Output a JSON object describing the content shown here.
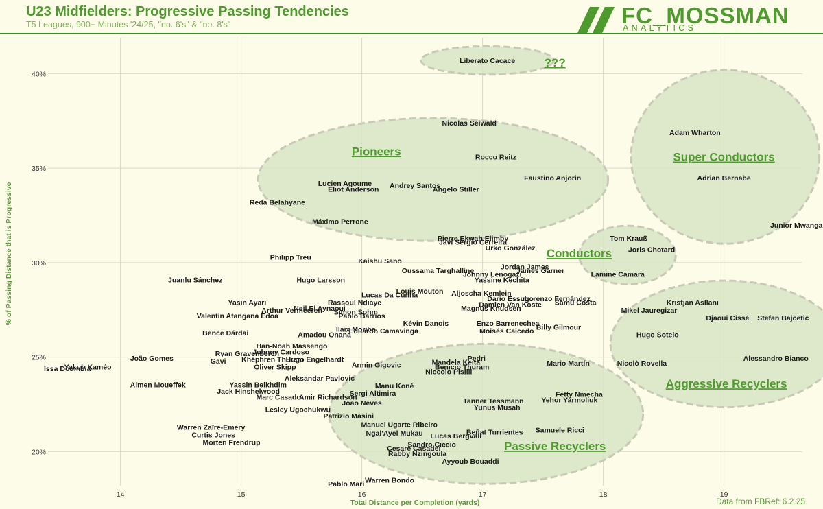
{
  "header": {
    "title": "U23 Midfielders: Progressive Passing Tendencies",
    "subtitle": "T5 Leagues, 900+ Minutes '24/25, \"no. 6's\" & \"no. 8's\""
  },
  "brand": {
    "name": "FC_MOSSMAN",
    "sub": "ANALYTICS",
    "accent": "#4f9a2e",
    "background": "#fdfce9",
    "ellipse_fill": "#d8e4c4"
  },
  "source": "Data from FBRef: 6.2.25",
  "chart_data": {
    "type": "scatter",
    "xlabel": "Total Distance per Completion (yards)",
    "ylabel": "% of Passing Distance that is Progressive",
    "xlim": [
      13.4,
      19.65
    ],
    "ylim": [
      18.2,
      41.9
    ],
    "grid": true,
    "x_ticks": [
      14,
      15,
      16,
      17,
      18,
      19
    ],
    "y_ticks": [
      {
        "v": 20,
        "label": "20%"
      },
      {
        "v": 25,
        "label": "25%"
      },
      {
        "v": 30,
        "label": "30%"
      },
      {
        "v": 35,
        "label": "35%"
      },
      {
        "v": 40,
        "label": "40%"
      }
    ],
    "clusters": [
      {
        "label": "???",
        "cx": 17.04,
        "cy": 40.7,
        "rx": 0.55,
        "ry": 0.75,
        "lx": 17.6,
        "ly": 40.6
      },
      {
        "label": "Pioneers",
        "cx": 16.59,
        "cy": 34.4,
        "rx": 1.45,
        "ry": 3.25,
        "lx": 16.12,
        "ly": 35.9
      },
      {
        "label": "Super Conductors",
        "cx": 19.01,
        "cy": 35.6,
        "rx": 0.78,
        "ry": 4.6,
        "lx": 19.0,
        "ly": 35.6
      },
      {
        "label": "Conductors",
        "cx": 18.2,
        "cy": 30.4,
        "rx": 0.4,
        "ry": 1.55,
        "lx": 17.8,
        "ly": 30.5
      },
      {
        "label": "Aggressive Recyclers",
        "cx": 19.01,
        "cy": 25.7,
        "rx": 0.95,
        "ry": 3.35,
        "lx": 19.02,
        "ly": 23.6
      },
      {
        "label": "Passive Recyclers",
        "cx": 17.03,
        "cy": 22.0,
        "rx": 1.3,
        "ry": 3.7,
        "lx": 17.6,
        "ly": 20.3
      }
    ],
    "points": [
      {
        "name": "Liberato Cacace",
        "x": 17.04,
        "y": 40.7
      },
      {
        "name": "Nicolas Seiwald",
        "x": 16.89,
        "y": 37.4
      },
      {
        "name": "Rocco Reitz",
        "x": 17.11,
        "y": 35.6
      },
      {
        "name": "Faustino Anjorin",
        "x": 17.58,
        "y": 34.5
      },
      {
        "name": "Lucien Agoume",
        "x": 15.86,
        "y": 34.2
      },
      {
        "name": "Andrey Santos",
        "x": 16.44,
        "y": 34.1
      },
      {
        "name": "Eliot Anderson",
        "x": 15.93,
        "y": 33.9
      },
      {
        "name": "Angelo Stiller",
        "x": 16.78,
        "y": 33.9
      },
      {
        "name": "Reda Belahyane",
        "x": 15.3,
        "y": 33.2
      },
      {
        "name": "Máximo Perrone",
        "x": 15.82,
        "y": 32.2
      },
      {
        "name": "Pierre Ekwah Elimby",
        "x": 16.92,
        "y": 31.3
      },
      {
        "name": "Javi Sergio Cerreira",
        "x": 16.92,
        "y": 31.1
      },
      {
        "name": "Urko González",
        "x": 17.23,
        "y": 30.8
      },
      {
        "name": "Philipp Treu",
        "x": 15.41,
        "y": 30.3
      },
      {
        "name": "Kaishu Sano",
        "x": 16.15,
        "y": 30.1
      },
      {
        "name": "Jordan James",
        "x": 17.35,
        "y": 29.8
      },
      {
        "name": "Oussama Targhalline",
        "x": 16.63,
        "y": 29.6
      },
      {
        "name": "Johnny Lenogazi",
        "x": 17.08,
        "y": 29.4
      },
      {
        "name": "James Garner",
        "x": 17.48,
        "y": 29.6
      },
      {
        "name": "Yassine Kechita",
        "x": 17.16,
        "y": 29.1
      },
      {
        "name": "Juanlu Sánchez",
        "x": 14.62,
        "y": 29.1
      },
      {
        "name": "Hugo Larsson",
        "x": 15.66,
        "y": 29.1
      },
      {
        "name": "Louis Mouton",
        "x": 16.48,
        "y": 28.5
      },
      {
        "name": "Lucas Da Cunha",
        "x": 16.23,
        "y": 28.3
      },
      {
        "name": "Aljoscha Kemlein",
        "x": 16.99,
        "y": 28.4
      },
      {
        "name": "Dario Essugo",
        "x": 17.23,
        "y": 28.1
      },
      {
        "name": "Lorenzo Fernández",
        "x": 17.62,
        "y": 28.1
      },
      {
        "name": "Damien Van Koste",
        "x": 17.23,
        "y": 27.8
      },
      {
        "name": "Samu Costa",
        "x": 17.77,
        "y": 27.9
      },
      {
        "name": "Magnus Knudsen",
        "x": 17.07,
        "y": 27.6
      },
      {
        "name": "Yasin Ayari",
        "x": 15.05,
        "y": 27.9
      },
      {
        "name": "Rassoul Ndiaye",
        "x": 15.94,
        "y": 27.9
      },
      {
        "name": "Neil El Aynaoui",
        "x": 15.65,
        "y": 27.6
      },
      {
        "name": "Arthur Vermeeren",
        "x": 15.42,
        "y": 27.5
      },
      {
        "name": "Simon Sohm",
        "x": 15.95,
        "y": 27.4
      },
      {
        "name": "Pablo Barrios",
        "x": 16.0,
        "y": 27.2
      },
      {
        "name": "Valentin Atangana Edoa",
        "x": 14.97,
        "y": 27.2
      },
      {
        "name": "Kévin Danois",
        "x": 16.53,
        "y": 26.8
      },
      {
        "name": "Enzo Barrenechea",
        "x": 17.21,
        "y": 26.8
      },
      {
        "name": "Billy Gilmour",
        "x": 17.63,
        "y": 26.6
      },
      {
        "name": "Moisés Caicedo",
        "x": 17.2,
        "y": 26.4
      },
      {
        "name": "Ilaix Moriba",
        "x": 15.95,
        "y": 26.5
      },
      {
        "name": "Eduardo Camavinga",
        "x": 16.18,
        "y": 26.4
      },
      {
        "name": "Bence Dárdai",
        "x": 14.87,
        "y": 26.3
      },
      {
        "name": "Amadou Onana",
        "x": 15.69,
        "y": 26.2
      },
      {
        "name": "Han-Noah Massengo",
        "x": 15.42,
        "y": 25.6
      },
      {
        "name": "Johnny Cardoso",
        "x": 15.33,
        "y": 25.3
      },
      {
        "name": "Ryan Gravenberch",
        "x": 15.05,
        "y": 25.2
      },
      {
        "name": "Khéphren Thuram",
        "x": 15.26,
        "y": 24.9
      },
      {
        "name": "Hugo Engelhardt",
        "x": 15.61,
        "y": 24.9
      },
      {
        "name": "Gavi",
        "x": 14.81,
        "y": 24.8
      },
      {
        "name": "Oliver Skipp",
        "x": 15.28,
        "y": 24.5
      },
      {
        "name": "João Gomes",
        "x": 14.26,
        "y": 24.95
      },
      {
        "name": "Issa Doumbia",
        "x": 13.56,
        "y": 24.4
      },
      {
        "name": "Yakub Kaméo",
        "x": 13.73,
        "y": 24.5
      },
      {
        "name": "Armin Gigovic",
        "x": 16.12,
        "y": 24.6
      },
      {
        "name": "Pedri",
        "x": 16.95,
        "y": 24.95
      },
      {
        "name": "Mandela Keita",
        "x": 16.78,
        "y": 24.75
      },
      {
        "name": "Benicio Thuram",
        "x": 16.83,
        "y": 24.5
      },
      {
        "name": "Niccolo Pisilli",
        "x": 16.72,
        "y": 24.25
      },
      {
        "name": "Mario Martín",
        "x": 17.71,
        "y": 24.7
      },
      {
        "name": "Aleksandar Pavlovic",
        "x": 15.65,
        "y": 23.9
      },
      {
        "name": "Aimen Moueffek",
        "x": 14.31,
        "y": 23.55
      },
      {
        "name": "Yassin Belkhdim",
        "x": 15.14,
        "y": 23.55
      },
      {
        "name": "Manu Koné",
        "x": 16.27,
        "y": 23.5
      },
      {
        "name": "Jack Hinshelwood",
        "x": 15.06,
        "y": 23.2
      },
      {
        "name": "Sergi Altimira",
        "x": 16.09,
        "y": 23.1
      },
      {
        "name": "Marc Casado",
        "x": 15.31,
        "y": 22.9
      },
      {
        "name": "Amir Richardson",
        "x": 15.72,
        "y": 22.9
      },
      {
        "name": "Joao Neves",
        "x": 16.0,
        "y": 22.6
      },
      {
        "name": "Tanner Tessmann",
        "x": 17.09,
        "y": 22.7
      },
      {
        "name": "Fetty Nmecha",
        "x": 17.8,
        "y": 23.05
      },
      {
        "name": "Yehor Yarmoliuk",
        "x": 17.72,
        "y": 22.75
      },
      {
        "name": "Yunus Musah",
        "x": 17.12,
        "y": 22.35
      },
      {
        "name": "Lesley Ugochukwu",
        "x": 15.47,
        "y": 22.25
      },
      {
        "name": "Patrizio Masini",
        "x": 15.89,
        "y": 21.9
      },
      {
        "name": "Manuel Ugarte Ribeiro",
        "x": 16.31,
        "y": 21.45
      },
      {
        "name": "Warren Zaïre-Emery",
        "x": 14.75,
        "y": 21.3
      },
      {
        "name": "Ngal'Ayel Mukau",
        "x": 16.27,
        "y": 21.0
      },
      {
        "name": "Beñat Turrientes",
        "x": 17.1,
        "y": 21.05
      },
      {
        "name": "Samuele Ricci",
        "x": 17.64,
        "y": 21.15
      },
      {
        "name": "Curtis Jones",
        "x": 14.77,
        "y": 20.9
      },
      {
        "name": "Lucas Bergvall",
        "x": 16.78,
        "y": 20.85
      },
      {
        "name": "Morten Frendrup",
        "x": 14.92,
        "y": 20.5
      },
      {
        "name": "Sandro Ciccio",
        "x": 16.58,
        "y": 20.4
      },
      {
        "name": "Cesare Casadei",
        "x": 16.43,
        "y": 20.2
      },
      {
        "name": "Rabby Nzingoula",
        "x": 16.46,
        "y": 19.9
      },
      {
        "name": "Ayyoub Bouaddi",
        "x": 16.9,
        "y": 19.5
      },
      {
        "name": "Warren Bondo",
        "x": 16.23,
        "y": 18.5
      },
      {
        "name": "Pablo Mari",
        "x": 15.87,
        "y": 18.3
      },
      {
        "name": "Tom Krauß",
        "x": 18.21,
        "y": 31.3
      },
      {
        "name": "Joris Chotard",
        "x": 18.4,
        "y": 30.7
      },
      {
        "name": "Lamine Camara",
        "x": 18.12,
        "y": 29.4
      },
      {
        "name": "Adam Wharton",
        "x": 18.76,
        "y": 36.9
      },
      {
        "name": "Adrian Bernabe",
        "x": 19.0,
        "y": 34.5
      },
      {
        "name": "Junior Mwanga",
        "x": 19.6,
        "y": 32.0
      },
      {
        "name": "Kristjan Asllani",
        "x": 18.74,
        "y": 27.9
      },
      {
        "name": "Mikel Jauregizar",
        "x": 18.38,
        "y": 27.5
      },
      {
        "name": "Djaoui Cissé",
        "x": 19.03,
        "y": 27.1
      },
      {
        "name": "Stefan Bajcetic",
        "x": 19.49,
        "y": 27.1
      },
      {
        "name": "Hugo Sotelo",
        "x": 18.45,
        "y": 26.2
      },
      {
        "name": "Nicolò Rovella",
        "x": 18.32,
        "y": 24.7
      },
      {
        "name": "Alessandro Bianco",
        "x": 19.43,
        "y": 24.95
      }
    ]
  }
}
